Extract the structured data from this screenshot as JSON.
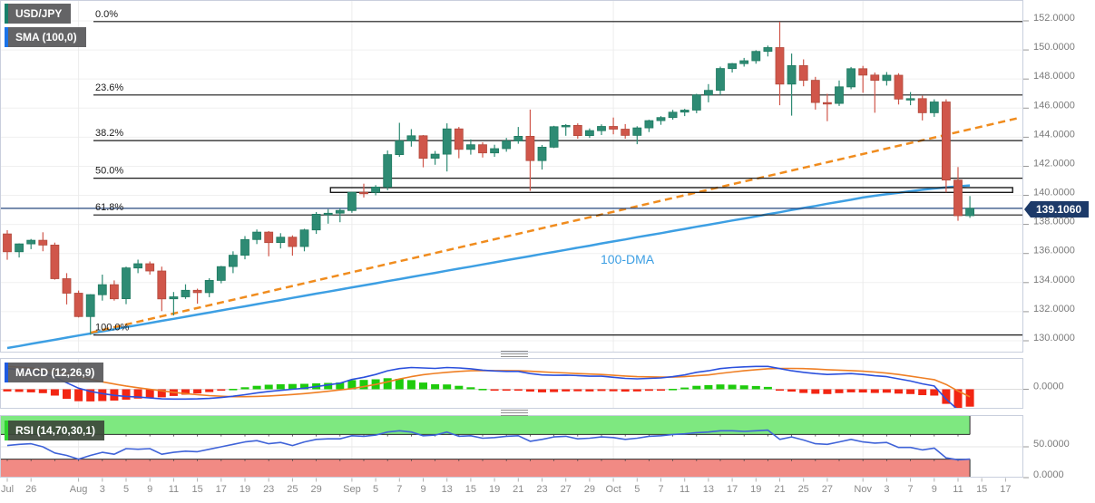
{
  "legend": {
    "symbol": "USD/JPY",
    "sma": "SMA (100,0)",
    "macd": "MACD (12,26,9)",
    "rsi": "RSI (14,70,30,1)"
  },
  "overlay_labels": {
    "dma": "100-DMA"
  },
  "price_axis": {
    "tick_labels": [
      "152.0000",
      "150.0000",
      "148.0000",
      "146.0000",
      "144.0000",
      "142.0000",
      "140.0000",
      "138.0000",
      "136.0000",
      "134.0000",
      "132.0000",
      "130.0000"
    ],
    "tick_values": [
      152,
      150,
      148,
      146,
      144,
      142,
      140,
      138,
      136,
      134,
      132,
      130
    ],
    "current": {
      "label": "139.1060",
      "value": 139.106
    }
  },
  "macd_axis": {
    "tick_labels": [
      "0.0000"
    ],
    "tick_values": [
      0
    ]
  },
  "rsi_axis": {
    "tick_labels": [
      "50.0000",
      "0.0000"
    ],
    "tick_values": [
      50,
      0
    ]
  },
  "x_axis": {
    "ticks": [
      {
        "i": 0,
        "label": "Jul"
      },
      {
        "i": 2,
        "label": "26"
      },
      {
        "i": 6,
        "label": "Aug"
      },
      {
        "i": 8,
        "label": "3"
      },
      {
        "i": 10,
        "label": "5"
      },
      {
        "i": 12,
        "label": "9"
      },
      {
        "i": 14,
        "label": "11"
      },
      {
        "i": 16,
        "label": "15"
      },
      {
        "i": 18,
        "label": "17"
      },
      {
        "i": 20,
        "label": "19"
      },
      {
        "i": 22,
        "label": "23"
      },
      {
        "i": 24,
        "label": "25"
      },
      {
        "i": 26,
        "label": "29"
      },
      {
        "i": 29,
        "label": "Sep"
      },
      {
        "i": 31,
        "label": "5"
      },
      {
        "i": 33,
        "label": "7"
      },
      {
        "i": 35,
        "label": "9"
      },
      {
        "i": 37,
        "label": "13"
      },
      {
        "i": 39,
        "label": "15"
      },
      {
        "i": 41,
        "label": "19"
      },
      {
        "i": 43,
        "label": "21"
      },
      {
        "i": 45,
        "label": "23"
      },
      {
        "i": 47,
        "label": "27"
      },
      {
        "i": 49,
        "label": "29"
      },
      {
        "i": 51,
        "label": "Oct"
      },
      {
        "i": 53,
        "label": "5"
      },
      {
        "i": 55,
        "label": "7"
      },
      {
        "i": 57,
        "label": "11"
      },
      {
        "i": 59,
        "label": "13"
      },
      {
        "i": 61,
        "label": "17"
      },
      {
        "i": 63,
        "label": "19"
      },
      {
        "i": 65,
        "label": "21"
      },
      {
        "i": 67,
        "label": "25"
      },
      {
        "i": 69,
        "label": "27"
      },
      {
        "i": 72,
        "label": "Nov"
      },
      {
        "i": 74,
        "label": "3"
      },
      {
        "i": 76,
        "label": "7"
      },
      {
        "i": 78,
        "label": "9"
      },
      {
        "i": 80,
        "label": "11"
      },
      {
        "i": 82,
        "label": "15"
      },
      {
        "i": 84,
        "label": "17"
      }
    ]
  },
  "fib_levels": [
    {
      "label": "0.0%",
      "price": 151.95
    },
    {
      "label": "23.6%",
      "price": 146.9
    },
    {
      "label": "38.2%",
      "price": 143.77
    },
    {
      "label": "50.0%",
      "price": 141.18
    },
    {
      "label": "61.8%",
      "price": 138.65
    },
    {
      "label": "100.0%",
      "price": 130.4
    }
  ],
  "chart_data": {
    "type": "candlestick",
    "title": "USD/JPY with SMA(100,0) / Fibonacci retracement, MACD(12,26,9) and RSI(14,70,30,1)",
    "price_range": [
      130,
      152
    ],
    "dates": [
      "Jul 22",
      "Jul 25",
      "Jul 26",
      "Jul 27",
      "Jul 28",
      "Jul 29",
      "Aug 1",
      "Aug 2",
      "Aug 3",
      "Aug 4",
      "Aug 5",
      "Aug 8",
      "Aug 9",
      "Aug 10",
      "Aug 11",
      "Aug 12",
      "Aug 15",
      "Aug 16",
      "Aug 17",
      "Aug 18",
      "Aug 19",
      "Aug 22",
      "Aug 23",
      "Aug 24",
      "Aug 25",
      "Aug 26",
      "Aug 29",
      "Aug 30",
      "Aug 31",
      "Sep 1",
      "Sep 2",
      "Sep 5",
      "Sep 6",
      "Sep 7",
      "Sep 8",
      "Sep 9",
      "Sep 12",
      "Sep 13",
      "Sep 14",
      "Sep 15",
      "Sep 16",
      "Sep 19",
      "Sep 20",
      "Sep 21",
      "Sep 22",
      "Sep 23",
      "Sep 26",
      "Sep 27",
      "Sep 28",
      "Sep 29",
      "Sep 30",
      "Oct 3",
      "Oct 4",
      "Oct 5",
      "Oct 6",
      "Oct 7",
      "Oct 10",
      "Oct 11",
      "Oct 12",
      "Oct 13",
      "Oct 14",
      "Oct 17",
      "Oct 18",
      "Oct 19",
      "Oct 20",
      "Oct 21",
      "Oct 24",
      "Oct 25",
      "Oct 26",
      "Oct 27",
      "Oct 28",
      "Oct 31",
      "Nov 1",
      "Nov 2",
      "Nov 3",
      "Nov 4",
      "Nov 7",
      "Nov 8",
      "Nov 9",
      "Nov 10",
      "Nov 11",
      "Nov 14"
    ],
    "ohlc": [
      [
        137.35,
        137.6,
        135.57,
        136.12
      ],
      [
        136.12,
        136.7,
        135.73,
        136.66
      ],
      [
        136.66,
        137.0,
        136.3,
        136.91
      ],
      [
        136.91,
        137.46,
        136.16,
        136.58
      ],
      [
        136.58,
        136.75,
        134.2,
        134.27
      ],
      [
        134.27,
        134.65,
        132.5,
        133.27
      ],
      [
        133.27,
        133.45,
        131.6,
        131.66
      ],
      [
        131.66,
        133.2,
        130.41,
        133.17
      ],
      [
        133.17,
        134.55,
        132.76,
        133.86
      ],
      [
        133.86,
        134.15,
        132.76,
        132.89
      ],
      [
        132.89,
        135.1,
        132.52,
        135.01
      ],
      [
        135.01,
        135.58,
        134.65,
        135.3
      ],
      [
        135.3,
        135.45,
        134.55,
        134.8
      ],
      [
        134.8,
        135.1,
        132.04,
        132.88
      ],
      [
        132.88,
        133.35,
        131.74,
        133.02
      ],
      [
        133.02,
        133.88,
        132.88,
        133.47
      ],
      [
        133.47,
        133.58,
        132.55,
        133.31
      ],
      [
        133.31,
        134.3,
        133.0,
        134.15
      ],
      [
        134.15,
        135.15,
        133.95,
        135.1
      ],
      [
        135.1,
        136.15,
        134.65,
        135.88
      ],
      [
        135.88,
        137.2,
        135.6,
        136.96
      ],
      [
        136.96,
        137.65,
        136.65,
        137.47
      ],
      [
        137.47,
        137.55,
        135.81,
        136.75
      ],
      [
        136.75,
        137.4,
        136.35,
        137.12
      ],
      [
        137.12,
        137.25,
        135.85,
        136.48
      ],
      [
        136.48,
        137.7,
        136.15,
        137.62
      ],
      [
        137.62,
        138.85,
        137.35,
        138.7
      ],
      [
        138.7,
        139.05,
        138.05,
        138.77
      ],
      [
        138.77,
        139.1,
        138.15,
        138.96
      ],
      [
        138.96,
        140.25,
        138.8,
        140.21
      ],
      [
        140.21,
        140.8,
        139.85,
        140.2
      ],
      [
        140.2,
        140.7,
        140.0,
        140.57
      ],
      [
        140.57,
        143.08,
        140.35,
        142.8
      ],
      [
        142.8,
        144.99,
        142.65,
        143.75
      ],
      [
        143.75,
        144.55,
        143.35,
        144.1
      ],
      [
        144.1,
        144.15,
        141.93,
        142.55
      ],
      [
        142.55,
        143.05,
        142.1,
        142.83
      ],
      [
        142.83,
        144.95,
        141.64,
        144.57
      ],
      [
        144.57,
        144.7,
        142.55,
        143.16
      ],
      [
        143.16,
        143.85,
        142.8,
        143.48
      ],
      [
        143.48,
        143.65,
        142.6,
        142.92
      ],
      [
        142.92,
        143.48,
        142.65,
        143.21
      ],
      [
        143.21,
        143.95,
        143.0,
        143.74
      ],
      [
        143.74,
        144.7,
        143.55,
        144.06
      ],
      [
        144.06,
        145.9,
        140.31,
        142.39
      ],
      [
        142.39,
        143.46,
        141.77,
        143.31
      ],
      [
        143.31,
        144.78,
        143.25,
        144.72
      ],
      [
        144.72,
        144.9,
        144.1,
        144.81
      ],
      [
        144.81,
        144.95,
        143.9,
        144.11
      ],
      [
        144.11,
        144.6,
        143.95,
        144.45
      ],
      [
        144.45,
        144.88,
        144.15,
        144.74
      ],
      [
        144.74,
        145.35,
        144.2,
        144.55
      ],
      [
        144.55,
        144.9,
        143.9,
        144.12
      ],
      [
        144.12,
        144.75,
        143.52,
        144.64
      ],
      [
        144.64,
        145.2,
        144.35,
        145.14
      ],
      [
        145.14,
        145.45,
        144.85,
        145.35
      ],
      [
        145.35,
        145.88,
        145.2,
        145.72
      ],
      [
        145.72,
        145.95,
        145.45,
        145.86
      ],
      [
        145.86,
        146.98,
        145.65,
        146.91
      ],
      [
        146.91,
        147.65,
        146.4,
        147.22
      ],
      [
        147.22,
        148.85,
        146.9,
        148.72
      ],
      [
        148.72,
        149.1,
        148.45,
        149.06
      ],
      [
        149.06,
        149.45,
        148.85,
        149.26
      ],
      [
        149.26,
        149.98,
        149.05,
        149.9
      ],
      [
        149.9,
        150.3,
        149.55,
        150.16
      ],
      [
        150.16,
        151.94,
        146.2,
        147.65
      ],
      [
        147.65,
        149.75,
        145.48,
        148.92
      ],
      [
        148.92,
        149.35,
        147.5,
        147.91
      ],
      [
        147.91,
        148.15,
        145.9,
        146.38
      ],
      [
        146.38,
        146.98,
        145.1,
        146.32
      ],
      [
        146.32,
        147.9,
        146.15,
        147.46
      ],
      [
        147.46,
        148.83,
        147.3,
        148.71
      ],
      [
        148.71,
        148.9,
        147.05,
        148.27
      ],
      [
        148.27,
        148.45,
        145.68,
        147.9
      ],
      [
        147.9,
        148.48,
        147.55,
        148.26
      ],
      [
        148.26,
        148.4,
        146.25,
        146.62
      ],
      [
        146.62,
        147.1,
        146.2,
        146.65
      ],
      [
        146.65,
        146.85,
        145.15,
        145.68
      ],
      [
        145.68,
        146.6,
        145.4,
        146.42
      ],
      [
        146.42,
        146.6,
        140.2,
        141.05
      ],
      [
        141.05,
        141.95,
        138.25,
        138.6
      ],
      [
        138.6,
        139.95,
        138.45,
        139.11
      ]
    ],
    "sma100": [
      129.5,
      129.64,
      129.79,
      129.93,
      130.07,
      130.22,
      130.36,
      130.5,
      130.65,
      130.79,
      130.94,
      131.08,
      131.22,
      131.37,
      131.51,
      131.65,
      131.8,
      131.94,
      132.09,
      132.23,
      132.37,
      132.52,
      132.66,
      132.8,
      132.95,
      133.09,
      133.24,
      133.38,
      133.52,
      133.67,
      133.81,
      133.95,
      134.1,
      134.24,
      134.39,
      134.53,
      134.67,
      134.82,
      134.96,
      135.1,
      135.25,
      135.39,
      135.54,
      135.68,
      135.82,
      135.97,
      136.11,
      136.25,
      136.4,
      136.54,
      136.69,
      136.83,
      136.97,
      137.12,
      137.26,
      137.4,
      137.55,
      137.69,
      137.84,
      137.98,
      138.12,
      138.27,
      138.41,
      138.55,
      138.7,
      138.84,
      138.99,
      139.13,
      139.27,
      139.42,
      139.56,
      139.7,
      139.85,
      139.97,
      140.08,
      140.18,
      140.28,
      140.38,
      140.47,
      140.55,
      140.62,
      140.68
    ],
    "rsi14": [
      52,
      54,
      55,
      50,
      40,
      36,
      30,
      36,
      41,
      38,
      47,
      46,
      47,
      38,
      41,
      43,
      42,
      46,
      50,
      54,
      58,
      60,
      55,
      57,
      52,
      58,
      62,
      63,
      63,
      68,
      67,
      69,
      74,
      76,
      74,
      68,
      69,
      74,
      67,
      68,
      64,
      65,
      67,
      68,
      59,
      62,
      66,
      67,
      63,
      64,
      66,
      65,
      62,
      64,
      67,
      68,
      70,
      71,
      73,
      74,
      76,
      76,
      75,
      76,
      77,
      62,
      66,
      61,
      55,
      54,
      58,
      62,
      58,
      56,
      57,
      49,
      49,
      45,
      48,
      32,
      29,
      30
    ],
    "macd": {
      "macd_line": [
        0.95,
        0.9,
        0.84,
        0.74,
        0.55,
        0.3,
        0.05,
        -0.1,
        -0.2,
        -0.28,
        -0.33,
        -0.36,
        -0.4,
        -0.44,
        -0.45,
        -0.45,
        -0.44,
        -0.42,
        -0.38,
        -0.32,
        -0.25,
        -0.17,
        -0.1,
        -0.05,
        0.0,
        0.05,
        0.12,
        0.2,
        0.28,
        0.45,
        0.55,
        0.68,
        0.85,
        0.95,
        1.0,
        0.98,
        0.96,
        1.0,
        0.98,
        0.94,
        0.88,
        0.84,
        0.82,
        0.82,
        0.72,
        0.66,
        0.64,
        0.65,
        0.63,
        0.6,
        0.6,
        0.55,
        0.5,
        0.48,
        0.5,
        0.52,
        0.58,
        0.66,
        0.78,
        0.85,
        0.95,
        1.0,
        1.03,
        1.05,
        1.05,
        0.95,
        0.85,
        0.78,
        0.72,
        0.68,
        0.7,
        0.72,
        0.68,
        0.62,
        0.58,
        0.48,
        0.38,
        0.25,
        0.15,
        -0.45,
        -0.95,
        -1.15
      ],
      "signal_line": [
        1.05,
        1.02,
        0.98,
        0.92,
        0.84,
        0.74,
        0.6,
        0.46,
        0.34,
        0.24,
        0.15,
        0.07,
        0.0,
        -0.07,
        -0.14,
        -0.2,
        -0.25,
        -0.29,
        -0.32,
        -0.34,
        -0.34,
        -0.33,
        -0.31,
        -0.28,
        -0.24,
        -0.2,
        -0.15,
        -0.09,
        -0.03,
        0.03,
        0.12,
        0.22,
        0.34,
        0.47,
        0.58,
        0.67,
        0.73,
        0.78,
        0.82,
        0.85,
        0.86,
        0.86,
        0.86,
        0.85,
        0.83,
        0.8,
        0.77,
        0.75,
        0.72,
        0.7,
        0.68,
        0.64,
        0.61,
        0.58,
        0.57,
        0.56,
        0.56,
        0.58,
        0.62,
        0.66,
        0.73,
        0.79,
        0.85,
        0.9,
        0.94,
        0.96,
        0.96,
        0.95,
        0.93,
        0.9,
        0.88,
        0.86,
        0.83,
        0.79,
        0.74,
        0.68,
        0.6,
        0.52,
        0.44,
        0.22,
        -0.08,
        -0.35
      ]
    },
    "rsi_levels": {
      "upper": 70,
      "lower": 30,
      "mid": 50
    },
    "trendline": {
      "style": "dashed",
      "from": {
        "i": 7,
        "price": 130.55
      },
      "to": {
        "i": 85,
        "price": 145.3
      }
    },
    "sr_zone": {
      "from_i": 27.2,
      "to_i": 84.6,
      "price_top": 140.53,
      "price_bottom": 140.2
    },
    "month_gridline_indices": [
      6,
      29,
      51,
      72
    ]
  },
  "colors": {
    "candle_up": "#2e8b74",
    "candle_down": "#d0564a",
    "candle_up_border": "#1f7a60",
    "candle_down_border": "#b14a3c",
    "sma100": "#3d9fe3",
    "trendline": "#f08c1e",
    "macd_line": "#2b50dd",
    "macd_signal": "#ef7f24",
    "macd_hist_up": "#1ecb0c",
    "macd_hist_down": "#f22613",
    "rsi_line": "#3f63d8",
    "rsi_upper_band": "#7ee880",
    "rsi_lower_band": "#f18a84",
    "price_line": "#26477d",
    "price_badge_bg": "#1d3a69",
    "fib_line": "#1a1a1a",
    "axis_text": "#7b7b7b",
    "panel_border": "#c9cfdd"
  }
}
